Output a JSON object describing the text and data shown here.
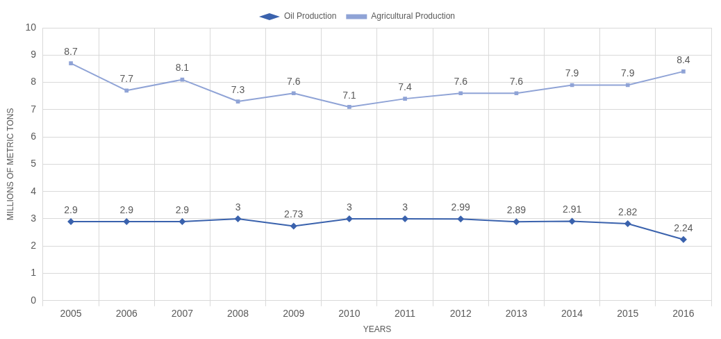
{
  "chart_data": {
    "type": "line",
    "xlabel": "YEARS",
    "ylabel": "MILLIONS OF METRIC TONS",
    "categories": [
      "2005",
      "2006",
      "2007",
      "2008",
      "2009",
      "2010",
      "2011",
      "2012",
      "2013",
      "2014",
      "2015",
      "2016"
    ],
    "series": [
      {
        "name": "Oil Production",
        "color": "#3a62ad",
        "marker": "diamond",
        "values": [
          2.9,
          2.9,
          2.9,
          3,
          2.73,
          3,
          3,
          2.99,
          2.89,
          2.91,
          2.82,
          2.24
        ]
      },
      {
        "name": "Agricultural Production",
        "color": "#8fa3d6",
        "marker": "square",
        "values": [
          8.7,
          7.7,
          8.1,
          7.3,
          7.6,
          7.1,
          7.4,
          7.6,
          7.6,
          7.9,
          7.9,
          8.4
        ]
      }
    ],
    "ylim": [
      0,
      10
    ],
    "yticks": [
      0,
      1,
      2,
      3,
      4,
      5,
      6,
      7,
      8,
      9,
      10
    ],
    "grid": true,
    "legend": "top",
    "data_labels": true,
    "line_style": "solid"
  }
}
